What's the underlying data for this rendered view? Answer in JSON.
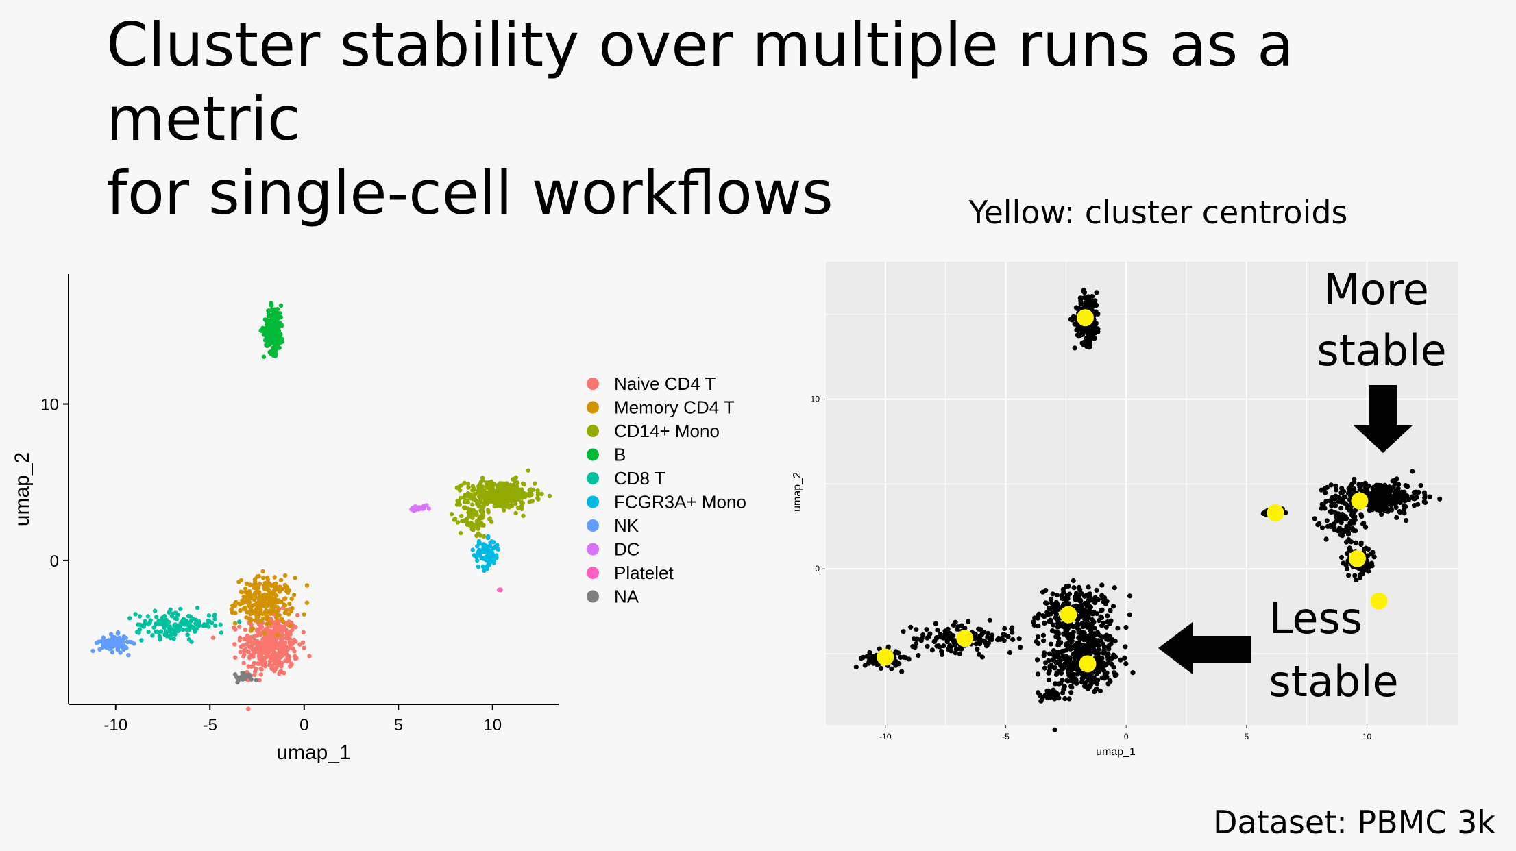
{
  "slide": {
    "title_lines": [
      "Cluster stability over multiple runs as a metric",
      "for single-cell workflows"
    ],
    "right_subtitle": "Yellow: cluster centroids",
    "dataset_label": "Dataset: PBMC 3k"
  },
  "chart_data": [
    {
      "type": "scatter",
      "xlabel": "umap_1",
      "ylabel": "umap_2",
      "xlim": [
        -12.5,
        13.5
      ],
      "ylim": [
        -9.2,
        18.3
      ],
      "xticks": [
        -10,
        -5,
        0,
        5,
        10
      ],
      "yticks": [
        0,
        10
      ],
      "grid": false,
      "legend_position": "right",
      "series": [
        {
          "name": "Naive CD4 T",
          "color": "#F8766D",
          "clusters": [
            {
              "cx": -1.8,
              "cy": -5.4,
              "sx": 1.0,
              "sy": 1.3,
              "n": 380
            }
          ]
        },
        {
          "name": "Memory CD4 T",
          "color": "#D39200",
          "clusters": [
            {
              "cx": -2.1,
              "cy": -2.6,
              "sx": 1.0,
              "sy": 1.0,
              "n": 240
            }
          ]
        },
        {
          "name": "CD14+ Mono",
          "color": "#93AA00",
          "clusters": [
            {
              "cx": 10.4,
              "cy": 4.2,
              "sx": 1.2,
              "sy": 0.6,
              "n": 320
            },
            {
              "cx": 9.0,
              "cy": 2.8,
              "sx": 0.5,
              "sy": 0.9,
              "n": 80
            }
          ]
        },
        {
          "name": "B",
          "color": "#00BA38",
          "clusters": [
            {
              "cx": -1.6,
              "cy": 14.8,
              "sx": 0.35,
              "sy": 1.0,
              "n": 200
            }
          ]
        },
        {
          "name": "CD8 T",
          "color": "#00C19F",
          "clusters": [
            {
              "cx": -6.8,
              "cy": -4.1,
              "sx": 1.4,
              "sy": 0.55,
              "n": 150
            }
          ]
        },
        {
          "name": "FCGR3A+ Mono",
          "color": "#00B9E3",
          "clusters": [
            {
              "cx": 9.7,
              "cy": 0.4,
              "sx": 0.45,
              "sy": 0.6,
              "n": 90
            }
          ]
        },
        {
          "name": "NK",
          "color": "#619CFF",
          "clusters": [
            {
              "cx": -10.1,
              "cy": -5.3,
              "sx": 0.5,
              "sy": 0.35,
              "n": 90
            }
          ]
        },
        {
          "name": "DC",
          "color": "#DB72FB",
          "clusters": [
            {
              "cx": 6.1,
              "cy": 3.3,
              "sx": 0.35,
              "sy": 0.12,
              "n": 25
            }
          ]
        },
        {
          "name": "Platelet",
          "color": "#FF61C3",
          "clusters": [
            {
              "cx": 10.4,
              "cy": -1.9,
              "sx": 0.05,
              "sy": 0.1,
              "n": 4
            }
          ]
        },
        {
          "name": "NA",
          "color": "#7F7F7F",
          "clusters": [
            {
              "cx": -3.1,
              "cy": -7.4,
              "sx": 0.5,
              "sy": 0.2,
              "n": 20
            }
          ]
        }
      ]
    },
    {
      "type": "scatter",
      "title": "Yellow: cluster centroids",
      "xlabel": "umap_1",
      "ylabel": "umap_2",
      "xlim": [
        -12.5,
        13.8
      ],
      "ylim": [
        -9.2,
        18.1
      ],
      "xticks": [
        -10,
        -5,
        0,
        5,
        10
      ],
      "yticks": [
        0,
        10
      ],
      "grid": true,
      "point_color": "#000000",
      "centroid_color": "#FFF200",
      "centroids": [
        {
          "x": -1.7,
          "y": 14.8
        },
        {
          "x": 9.7,
          "y": 4.0
        },
        {
          "x": 6.2,
          "y": 3.3
        },
        {
          "x": 9.6,
          "y": 0.6
        },
        {
          "x": 10.5,
          "y": -1.9
        },
        {
          "x": -2.4,
          "y": -2.7
        },
        {
          "x": -6.7,
          "y": -4.1
        },
        {
          "x": -1.6,
          "y": -5.6
        },
        {
          "x": -10.0,
          "y": -5.2
        }
      ],
      "annotations": [
        {
          "text_lines": [
            "More",
            "stable"
          ],
          "arrow": "down"
        },
        {
          "text_lines": [
            "Less",
            "stable"
          ],
          "arrow": "left"
        }
      ]
    }
  ]
}
